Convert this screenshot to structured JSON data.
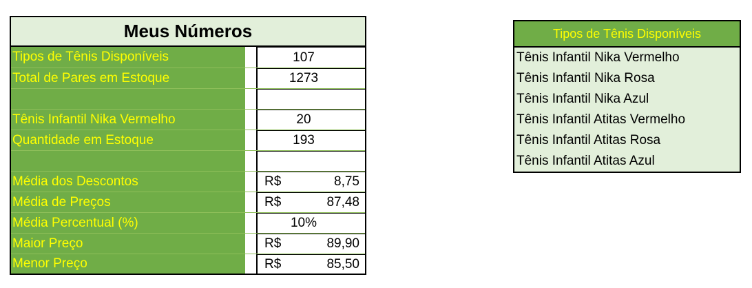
{
  "left": {
    "title": "Meus Números",
    "rows": [
      {
        "label": "Tipos de Tênis Disponíveis",
        "value": "107",
        "currency": ""
      },
      {
        "label": "Total de Pares em Estoque",
        "value": "1273",
        "currency": ""
      },
      {
        "label": "",
        "value": "",
        "currency": ""
      },
      {
        "label": "Tênis Infantil Nika Vermelho",
        "value": "20",
        "currency": ""
      },
      {
        "label": "Quantidade em Estoque",
        "value": "193",
        "currency": ""
      },
      {
        "label": "",
        "value": "",
        "currency": ""
      },
      {
        "label": "Média dos Descontos",
        "value": "8,75",
        "currency": "R$"
      },
      {
        "label": "Média de Preços",
        "value": "87,48",
        "currency": "R$"
      },
      {
        "label": "Média Percentual (%)",
        "value": "10%",
        "currency": ""
      },
      {
        "label": "Maior Preço",
        "value": "89,90",
        "currency": "R$"
      },
      {
        "label": "Menor Preço",
        "value": "85,50",
        "currency": "R$"
      }
    ]
  },
  "right": {
    "header": "Tipos de Tênis Disponíveis",
    "items": [
      "Tênis Infantil Nika Vermelho",
      "Tênis Infantil Nika Rosa",
      "Tênis Infantil Nika Azul",
      "Tênis Infantil Atitas Vermelho",
      "Tênis Infantil Atitas Rosa",
      "Tênis Infantil Atitas Azul"
    ]
  },
  "colors": {
    "green": "#70ad47",
    "light_green": "#e2efda",
    "yellow_text": "#ffff00"
  }
}
